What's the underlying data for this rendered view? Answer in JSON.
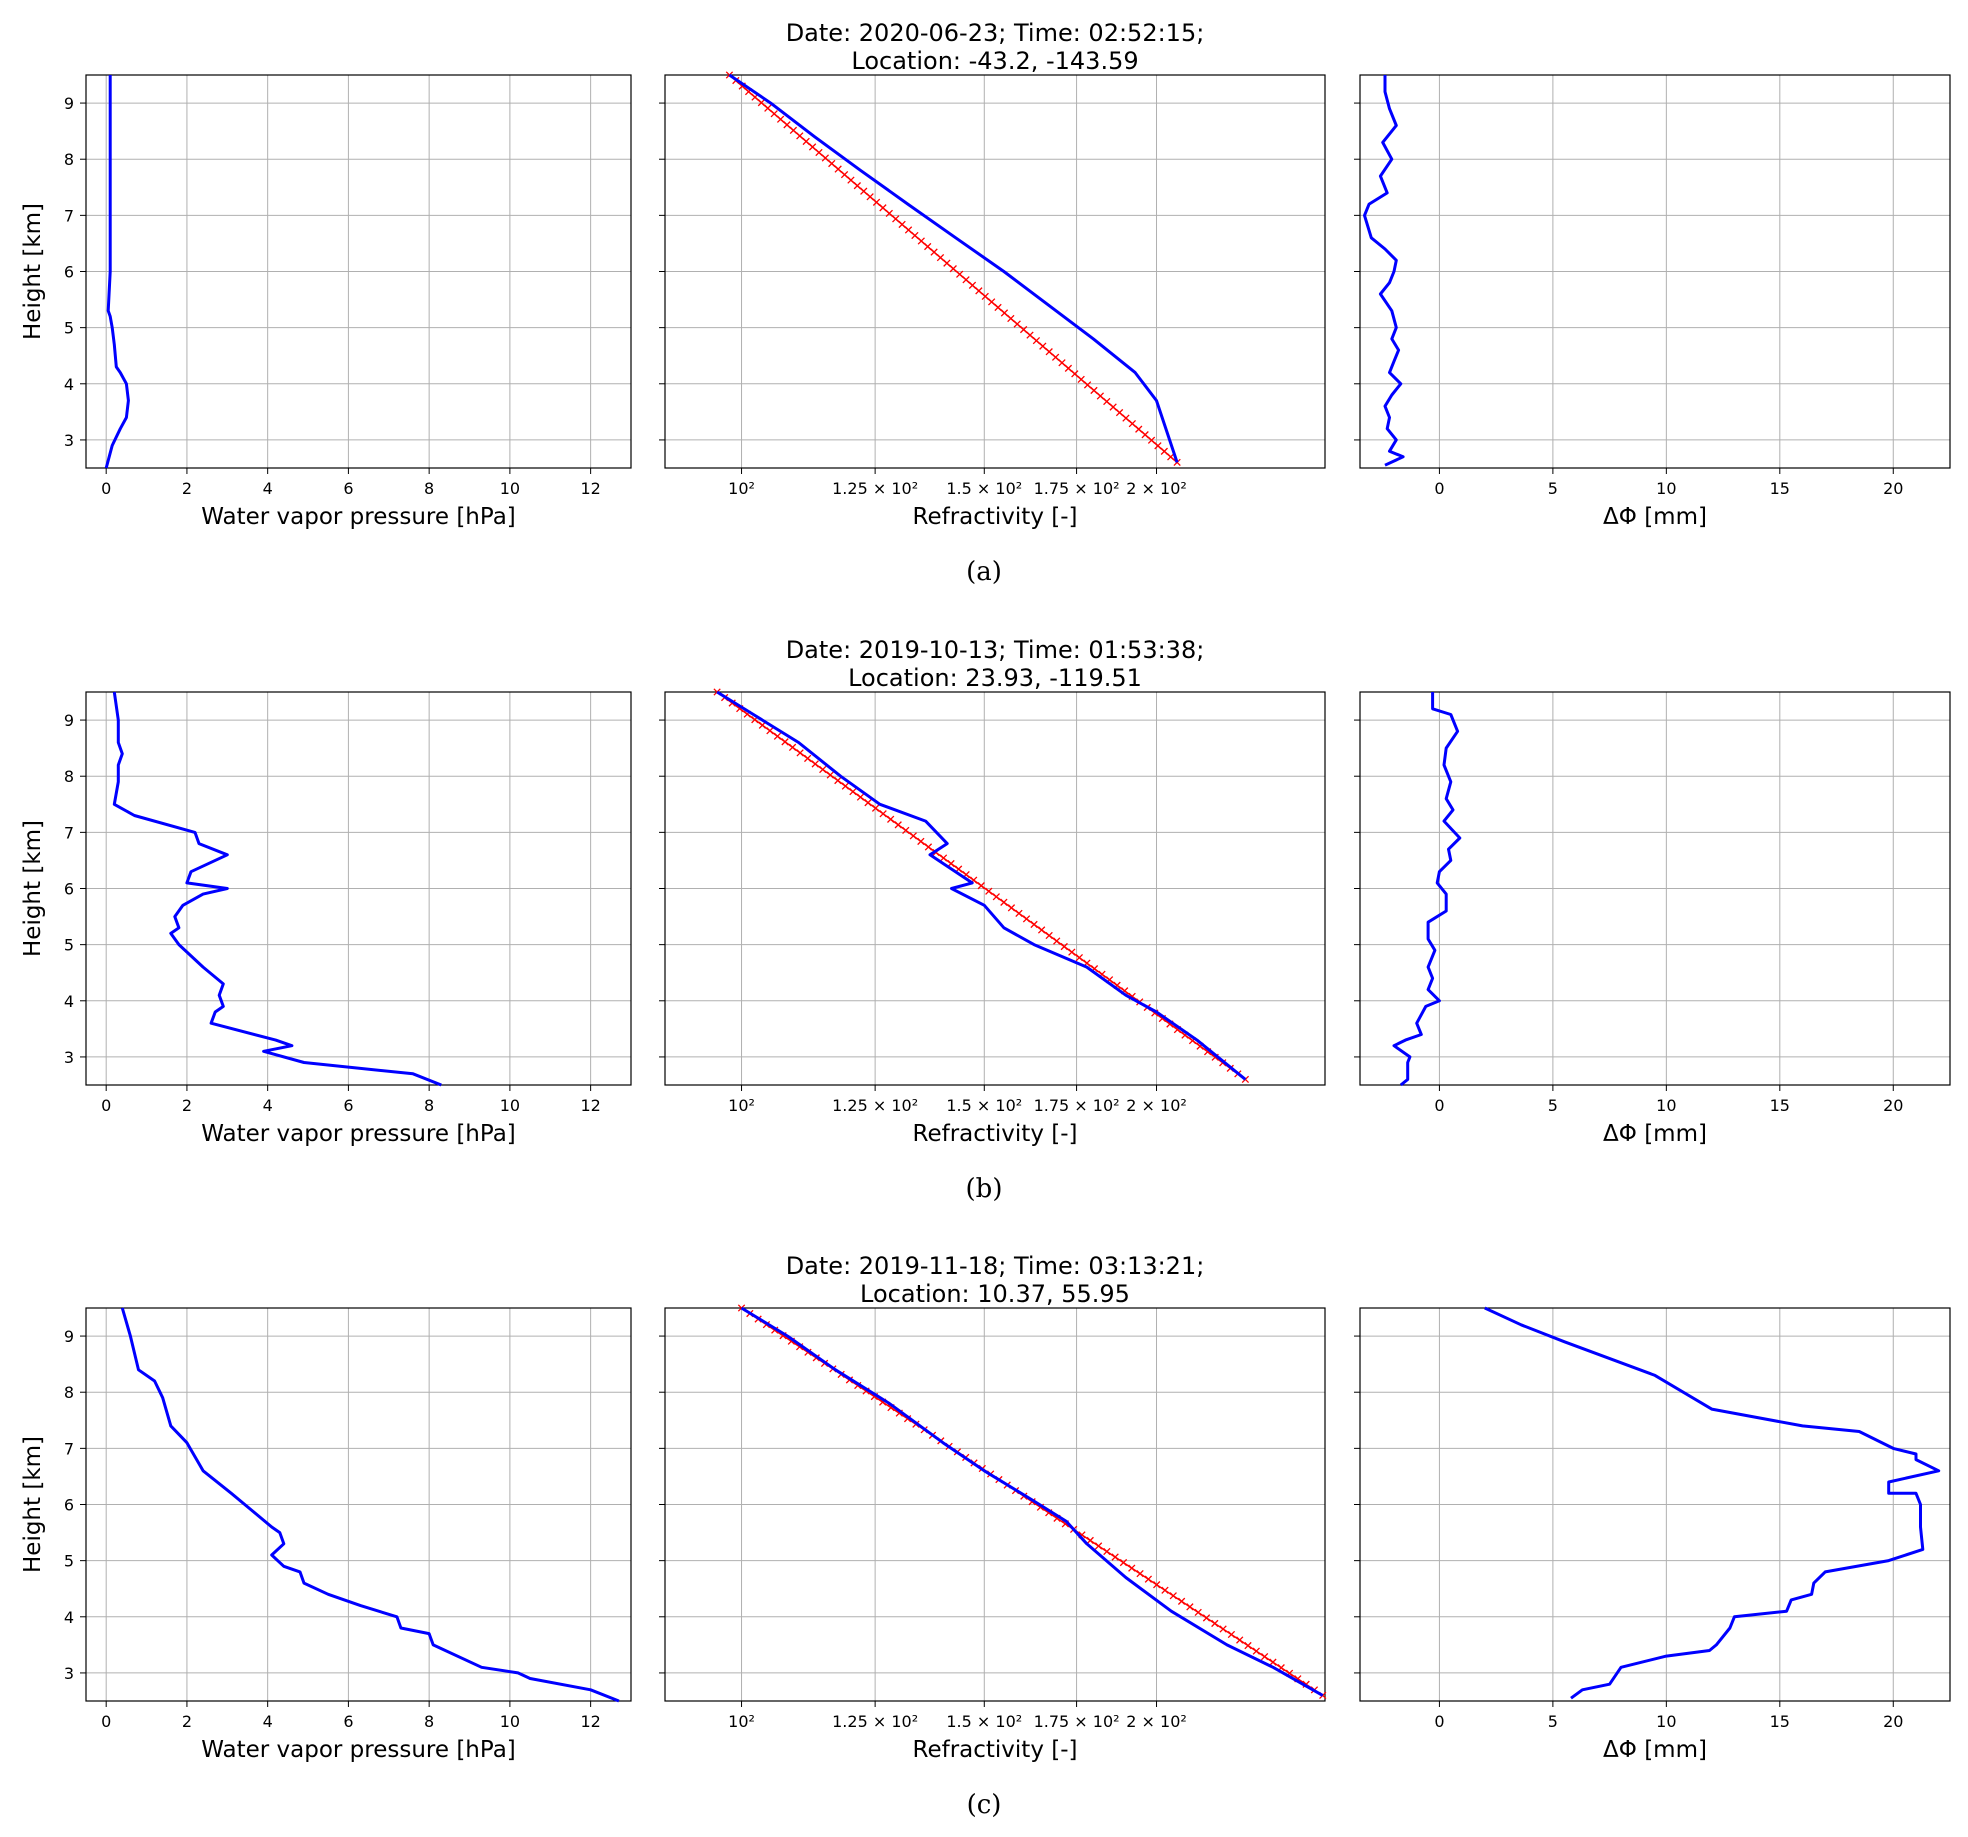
{
  "figure": {
    "panels": [
      {
        "caption": "(a)",
        "title_line1": "Date: 2020-06-23; Time: 02:52:15;",
        "title_line2": "Location: -43.2, -143.59"
      },
      {
        "caption": "(b)",
        "title_line1": "Date: 2019-10-13; Time: 01:53:38;",
        "title_line2": "Location: 23.93, -119.51"
      },
      {
        "caption": "(c)",
        "title_line1": "Date: 2019-11-18; Time: 03:13:21;",
        "title_line2": "Location: 10.37, 55.95"
      }
    ]
  },
  "axes": {
    "ylabel": "Height [km]",
    "y_ticks": [
      "3",
      "4",
      "5",
      "6",
      "7",
      "8",
      "9"
    ],
    "wv_xlabel": "Water vapor pressure [hPa]",
    "wv_ticks": [
      "0",
      "2",
      "4",
      "6",
      "8",
      "10",
      "12"
    ],
    "ref_xlabel": "Refractivity [-]",
    "ref_ticks": [
      "10²",
      "1.25 × 10²",
      "1.5 × 10²",
      "1.75 × 10²",
      "2 × 10²"
    ],
    "dphi_xlabel": "ΔΦ [mm]",
    "dphi_ticks": [
      "0",
      "5",
      "10",
      "15",
      "20"
    ]
  },
  "colors": {
    "profile": "#0000ff",
    "reference": "#ff0000",
    "grid": "#b0b0b0"
  },
  "chart_data": [
    {
      "panel": "(a)",
      "type": "line",
      "water_vapor": {
        "xlim": [
          -0.5,
          13
        ],
        "ylim": [
          2.5,
          9.5
        ],
        "x": [
          0.1,
          0.1,
          0.1,
          0.1,
          0.1,
          0.05,
          0.1,
          0.15,
          0.2,
          0.25,
          0.35,
          0.5,
          0.55,
          0.5,
          0.35,
          0.15,
          0.0
        ],
        "y": [
          9.5,
          9.0,
          8.0,
          7.0,
          6.0,
          5.3,
          5.2,
          5.0,
          4.7,
          4.3,
          4.2,
          4.0,
          3.7,
          3.4,
          3.2,
          2.9,
          2.5
        ]
      },
      "refractivity": {
        "xscale": "log",
        "xlim": [
          88,
          265
        ],
        "ylim": [
          2.5,
          9.5
        ],
        "profile": {
          "x": [
            98,
            105,
            113,
            122,
            132,
            143,
            155,
            167,
            180,
            193,
            200,
            207
          ],
          "y": [
            9.5,
            9.0,
            8.4,
            7.8,
            7.2,
            6.6,
            6.0,
            5.4,
            4.8,
            4.2,
            3.7,
            2.6
          ]
        },
        "reference": {
          "x": [
            98,
            207
          ],
          "y": [
            9.5,
            2.6
          ]
        }
      },
      "delta_phi": {
        "xlim": [
          -3.5,
          22.5
        ],
        "ylim": [
          2.5,
          9.5
        ],
        "x": [
          -2.4,
          -2.4,
          -2.2,
          -1.9,
          -2.5,
          -2.1,
          -2.6,
          -2.3,
          -3.1,
          -3.3,
          -3.0,
          -2.4,
          -1.9,
          -2.0,
          -2.2,
          -2.6,
          -2.1,
          -1.9,
          -2.1,
          -1.8,
          -2.0,
          -2.2,
          -1.7,
          -2.1,
          -2.4,
          -2.2,
          -2.3,
          -1.9,
          -2.2,
          -1.6,
          -2.4
        ],
        "y": [
          9.5,
          9.2,
          8.9,
          8.6,
          8.3,
          8.0,
          7.7,
          7.4,
          7.2,
          7.0,
          6.6,
          6.4,
          6.2,
          6.0,
          5.8,
          5.6,
          5.3,
          5.0,
          4.8,
          4.6,
          4.4,
          4.2,
          4.0,
          3.8,
          3.6,
          3.4,
          3.2,
          3.0,
          2.8,
          2.7,
          2.55
        ]
      }
    },
    {
      "panel": "(b)",
      "type": "line",
      "water_vapor": {
        "xlim": [
          -0.5,
          13
        ],
        "ylim": [
          2.5,
          9.5
        ],
        "x": [
          0.2,
          0.3,
          0.3,
          0.4,
          0.3,
          0.3,
          0.2,
          0.7,
          2.2,
          2.3,
          3.0,
          2.1,
          2.0,
          3.0,
          2.4,
          1.9,
          1.7,
          1.8,
          1.6,
          1.8,
          2.4,
          2.9,
          2.8,
          2.9,
          2.7,
          2.6,
          4.2,
          4.6,
          3.9,
          4.9,
          7.6,
          8.3
        ],
        "y": [
          9.5,
          9.0,
          8.6,
          8.4,
          8.2,
          7.9,
          7.5,
          7.3,
          7.0,
          6.8,
          6.6,
          6.3,
          6.1,
          6.0,
          5.9,
          5.7,
          5.5,
          5.3,
          5.2,
          5.0,
          4.6,
          4.3,
          4.1,
          3.9,
          3.8,
          3.6,
          3.3,
          3.2,
          3.1,
          2.9,
          2.7,
          2.5
        ]
      },
      "refractivity": {
        "xscale": "log",
        "xlim": [
          88,
          265
        ],
        "ylim": [
          2.5,
          9.5
        ],
        "profile": {
          "x": [
            96,
            102,
            110,
            118,
            126,
            136,
            141,
            137,
            147,
            142,
            150,
            155,
            163,
            178,
            190,
            200,
            214,
            232
          ],
          "y": [
            9.5,
            9.1,
            8.6,
            8.0,
            7.5,
            7.2,
            6.8,
            6.6,
            6.1,
            6.0,
            5.7,
            5.3,
            5.0,
            4.6,
            4.1,
            3.8,
            3.3,
            2.6
          ]
        },
        "reference": {
          "x": [
            96,
            232
          ],
          "y": [
            9.5,
            2.6
          ]
        }
      },
      "delta_phi": {
        "xlim": [
          -3.5,
          22.5
        ],
        "ylim": [
          2.5,
          9.5
        ],
        "x": [
          -0.3,
          -0.3,
          0.5,
          0.8,
          0.3,
          0.2,
          0.5,
          0.3,
          0.6,
          0.2,
          0.9,
          0.4,
          0.5,
          0.0,
          -0.1,
          0.3,
          0.3,
          -0.5,
          -0.5,
          -0.2,
          -0.5,
          -0.3,
          -0.5,
          0.0,
          -0.6,
          -1.0,
          -0.8,
          -1.5,
          -2.0,
          -1.3,
          -1.4,
          -1.4,
          -1.7
        ],
        "y": [
          9.5,
          9.2,
          9.1,
          8.8,
          8.5,
          8.2,
          7.9,
          7.6,
          7.4,
          7.2,
          6.9,
          6.7,
          6.5,
          6.3,
          6.1,
          5.9,
          5.6,
          5.4,
          5.1,
          4.9,
          4.6,
          4.4,
          4.2,
          4.0,
          3.9,
          3.6,
          3.4,
          3.3,
          3.2,
          3.0,
          2.9,
          2.6,
          2.5
        ]
      }
    },
    {
      "panel": "(c)",
      "type": "line",
      "water_vapor": {
        "xlim": [
          -0.5,
          13
        ],
        "ylim": [
          2.5,
          9.5
        ],
        "x": [
          0.4,
          0.6,
          0.8,
          1.2,
          1.4,
          1.6,
          2.0,
          2.4,
          3.1,
          3.6,
          4.1,
          4.3,
          4.4,
          4.1,
          4.4,
          4.8,
          4.9,
          5.5,
          6.3,
          7.2,
          7.3,
          8.0,
          8.1,
          9.3,
          10.2,
          10.5,
          12.0,
          12.7
        ],
        "y": [
          9.5,
          9.0,
          8.4,
          8.2,
          7.9,
          7.4,
          7.1,
          6.6,
          6.2,
          5.9,
          5.6,
          5.5,
          5.3,
          5.1,
          4.9,
          4.8,
          4.6,
          4.4,
          4.2,
          4.0,
          3.8,
          3.7,
          3.5,
          3.1,
          3.0,
          2.9,
          2.7,
          2.5
        ]
      },
      "refractivity": {
        "xscale": "log",
        "xlim": [
          88,
          265
        ],
        "ylim": [
          2.5,
          9.5
        ],
        "profile": {
          "x": [
            100,
            108,
            117,
            128,
            140,
            150,
            162,
            172,
            178,
            190,
            205,
            225,
            243,
            264
          ],
          "y": [
            9.5,
            9.0,
            8.4,
            7.8,
            7.1,
            6.6,
            6.1,
            5.7,
            5.3,
            4.7,
            4.1,
            3.5,
            3.1,
            2.6
          ]
        },
        "reference": {
          "x": [
            100,
            264
          ],
          "y": [
            9.5,
            2.6
          ]
        }
      },
      "delta_phi": {
        "xlim": [
          -3.5,
          22.5
        ],
        "ylim": [
          2.5,
          9.5
        ],
        "x": [
          2.0,
          3.6,
          5.5,
          9.5,
          12.0,
          16.0,
          18.5,
          20.0,
          21.0,
          21.0,
          22.0,
          19.8,
          19.8,
          21.0,
          21.2,
          21.2,
          21.3,
          19.8,
          17.0,
          16.5,
          16.4,
          15.5,
          15.3,
          13.0,
          12.8,
          12.2,
          11.9,
          10.0,
          8.0,
          7.5,
          6.3,
          5.8
        ],
        "y": [
          9.5,
          9.2,
          8.9,
          8.3,
          7.7,
          7.4,
          7.3,
          7.0,
          6.9,
          6.8,
          6.6,
          6.4,
          6.2,
          6.2,
          6.0,
          5.6,
          5.2,
          5.0,
          4.8,
          4.6,
          4.4,
          4.3,
          4.1,
          4.0,
          3.8,
          3.5,
          3.4,
          3.3,
          3.1,
          2.8,
          2.7,
          2.55
        ]
      }
    }
  ]
}
